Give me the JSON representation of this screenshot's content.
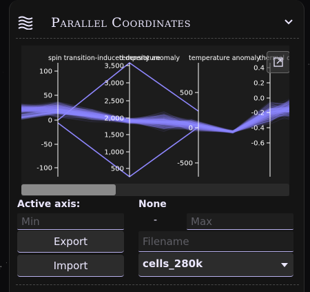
{
  "header": {
    "title": "Parallel Coordinates",
    "icon": "layers-icon",
    "collapse_icon": "chevron-down-icon"
  },
  "plot": {
    "axes": [
      {
        "label": "spin transition-induced density anomaly",
        "ticks": [
          "100",
          "50",
          "0",
          "-50",
          "-100"
        ]
      },
      {
        "label": "temperature",
        "ticks": [
          "3,500",
          "3,000",
          "2,500",
          "2,000",
          "1,500",
          "1,000",
          "500"
        ]
      },
      {
        "label": "temperature anomaly",
        "ticks": [
          "500",
          "0",
          "-500"
        ]
      },
      {
        "label": "thermal conductivity",
        "ticks": [
          "0.4",
          "0.2",
          "0.0",
          "-0.2",
          "-0.4",
          "-0.6"
        ]
      }
    ],
    "colors": {
      "lines": "#8f87ff",
      "axis": "#ffffff",
      "background": "#1c1c1c"
    },
    "expand_icon": "expand-icon"
  },
  "controls": {
    "active_axis_label": "Active axis:",
    "active_axis_value": "None",
    "min_placeholder": "Min",
    "range_separator": "-",
    "max_placeholder": "Max",
    "export_label": "Export",
    "filename_placeholder": "Filename",
    "import_label": "Import",
    "dataset_selected": "cells_280k"
  },
  "colors": {
    "accent": "#b9b2ee",
    "panel": "#141414",
    "text": "#ece8ff"
  }
}
